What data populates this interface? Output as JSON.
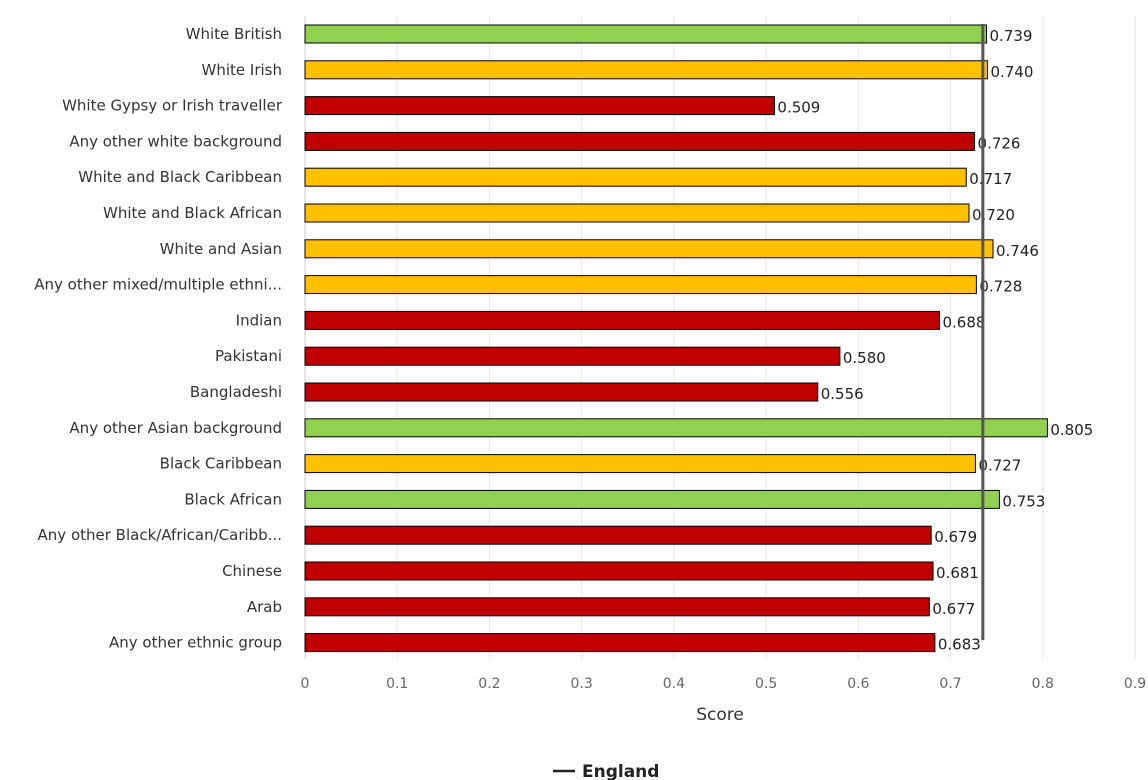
{
  "chart_data": {
    "type": "bar",
    "orientation": "horizontal",
    "categories": [
      "White British",
      "White Irish",
      "White Gypsy or Irish traveller",
      "Any other white background",
      "White and Black Caribbean",
      "White and Black African",
      "White and Asian",
      "Any other mixed/multiple ethni...",
      "Indian",
      "Pakistani",
      "Bangladeshi",
      "Any other Asian background",
      "Black Caribbean",
      "Black African",
      "Any other Black/African/Caribb...",
      "Chinese",
      "Arab",
      "Any other ethnic group"
    ],
    "values": [
      0.739,
      0.74,
      0.509,
      0.726,
      0.717,
      0.72,
      0.746,
      0.728,
      0.688,
      0.58,
      0.556,
      0.805,
      0.727,
      0.753,
      0.679,
      0.681,
      0.677,
      0.683
    ],
    "value_labels": [
      "0.739",
      "0.740",
      "0.509",
      "0.726",
      "0.717",
      "0.720",
      "0.746",
      "0.728",
      "0.688",
      "0.580",
      "0.556",
      "0.805",
      "0.727",
      "0.753",
      "0.679",
      "0.681",
      "0.677",
      "0.683"
    ],
    "bar_status": [
      "green",
      "amber",
      "red",
      "red",
      "amber",
      "amber",
      "amber",
      "amber",
      "red",
      "red",
      "red",
      "green",
      "amber",
      "green",
      "red",
      "red",
      "red",
      "red"
    ],
    "colors": {
      "green": "#92d050",
      "amber": "#ffc000",
      "red": "#c00000",
      "england_line": "#555555"
    },
    "xlim": [
      0,
      0.9
    ],
    "x_ticks": [
      "0",
      "0.1",
      "0.2",
      "0.3",
      "0.4",
      "0.5",
      "0.6",
      "0.7",
      "0.8",
      "0.9"
    ],
    "xlabel": "Score",
    "reference_line": {
      "name": "England",
      "value": 0.735
    },
    "legend": {
      "position": "bottom-center",
      "entries": [
        "England"
      ]
    },
    "grid": "vertical"
  }
}
